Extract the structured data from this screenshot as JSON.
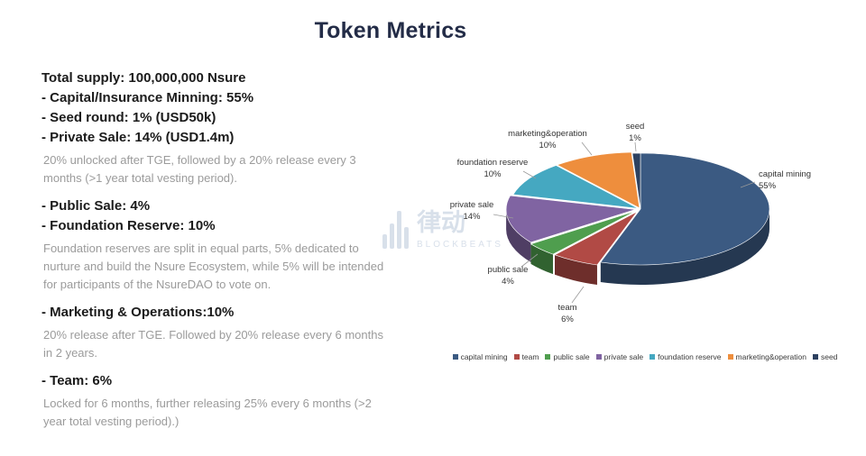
{
  "page": {
    "title": "Token Metrics"
  },
  "left": {
    "total_supply": "Total supply: 100,000,000 Nsure",
    "bullet_capital": "- Capital/Insurance Minning: 55%",
    "bullet_seed": "- Seed round: 1% (USD50k)",
    "bullet_private": "- Private Sale: 14% (USD1.4m)",
    "note_private": "20% unlocked after TGE, followed by a 20% release every 3 months (>1 year total vesting period).",
    "bullet_public": "- Public Sale: 4%",
    "bullet_foundation": "- Foundation Reserve: 10%",
    "note_foundation": "Foundation reserves are split in equal parts, 5% dedicated to nurture and build the Nsure Ecosystem, while 5% will be intended for participants of the NsureDAO to vote on.",
    "bullet_marketing": "- Marketing & Operations:10%",
    "note_marketing": "20% release after TGE. Followed by 20% release every 6 months in 2 years.",
    "bullet_team": "- Team: 6%",
    "note_team": "Locked for 6 months, further releasing 25% every 6 months (>2 year total vesting period).)"
  },
  "watermark": {
    "cjk": "律动",
    "brand": "BLOCKBEATS"
  },
  "chart_data": {
    "type": "pie",
    "style": "3d-exploded-pie",
    "unit": "%",
    "direction": "clockwise",
    "start_angle_deg": 0,
    "legend_position": "bottom",
    "slices": [
      {
        "name": "capital mining",
        "value": 55,
        "pct_label": "55%",
        "color": "#3b5a82"
      },
      {
        "name": "team",
        "value": 6,
        "pct_label": "6%",
        "color": "#b14a45"
      },
      {
        "name": "public sale",
        "value": 4,
        "pct_label": "4%",
        "color": "#4f9e4e"
      },
      {
        "name": "private sale",
        "value": 14,
        "pct_label": "14%",
        "color": "#8064a2"
      },
      {
        "name": "foundation reserve",
        "value": 10,
        "pct_label": "10%",
        "color": "#45a8c1"
      },
      {
        "name": "marketing&operation",
        "value": 10,
        "pct_label": "10%",
        "color": "#ee8e3d"
      },
      {
        "name": "seed",
        "value": 1,
        "pct_label": "1%",
        "color": "#2d4160"
      }
    ],
    "legend": [
      "capital mining",
      "team",
      "public sale",
      "private sale",
      "foundation reserve",
      "marketing&operation",
      "seed"
    ]
  }
}
